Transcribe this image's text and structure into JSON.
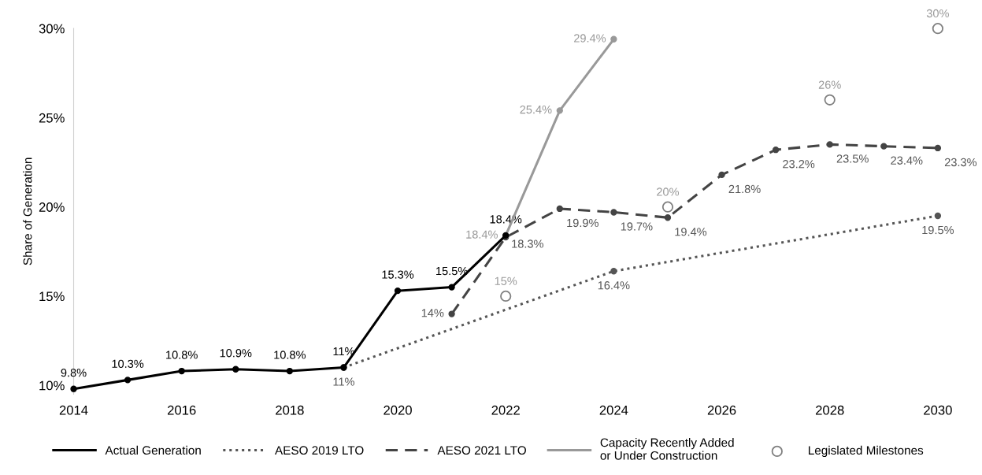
{
  "chart_data": {
    "type": "line",
    "ylabel": "Share of Generation",
    "xlim": [
      2014,
      2030
    ],
    "xticks": [
      2014,
      2016,
      2018,
      2020,
      2022,
      2024,
      2026,
      2028,
      2030
    ],
    "ylim": [
      9.5,
      30
    ],
    "yticks": [
      {
        "value": 10,
        "label": "10%"
      },
      {
        "value": 15,
        "label": "15%"
      },
      {
        "value": 20,
        "label": "20%"
      },
      {
        "value": 25,
        "label": "25%"
      },
      {
        "value": 30,
        "label": "30%"
      }
    ],
    "grid": false,
    "legend": "bottom",
    "series": [
      {
        "name": "Actual Generation",
        "type": "line",
        "color": "#000000",
        "line_style": "solid",
        "marker": "circle",
        "x": [
          2014,
          2015,
          2016,
          2017,
          2018,
          2019,
          2020,
          2021,
          2022
        ],
        "values": [
          9.8,
          10.3,
          10.8,
          10.9,
          10.8,
          11,
          15.3,
          15.5,
          18.4
        ],
        "value_labels": [
          "9.8%",
          "10.3%",
          "10.8%",
          "10.9%",
          "10.8%",
          "11%",
          "15.3%",
          "15.5%",
          "18.4%"
        ]
      },
      {
        "name": "AESO 2019 LTO",
        "type": "line",
        "color": "#555555",
        "line_style": "dotted",
        "marker": "circle",
        "x": [
          2019,
          2024,
          2030
        ],
        "values": [
          11,
          16.4,
          19.5
        ],
        "value_labels": [
          "11%",
          "16.4%",
          "19.5%"
        ]
      },
      {
        "name": "AESO 2021 LTO",
        "type": "line",
        "color": "#444444",
        "line_style": "dashed",
        "marker": "circle",
        "x": [
          2021,
          2022,
          2023,
          2024,
          2025,
          2026,
          2027,
          2028,
          2029,
          2030
        ],
        "values": [
          14,
          18.3,
          19.9,
          19.7,
          19.4,
          21.8,
          23.2,
          23.5,
          23.4,
          23.3
        ],
        "value_labels": [
          "14%",
          "18.3%",
          "19.9%",
          "19.7%",
          "19.4%",
          "21.8%",
          "23.2%",
          "23.5%",
          "23.4%",
          "23.3%"
        ]
      },
      {
        "name": "Capacity Recently Added\nor Under Construction",
        "type": "line",
        "color": "#999999",
        "line_style": "solid",
        "marker": "circle",
        "x": [
          2022,
          2023,
          2024
        ],
        "values": [
          18.4,
          25.4,
          29.4
        ],
        "value_labels": [
          "18.4%",
          "25.4%",
          "29.4%"
        ]
      },
      {
        "name": "Legislated Milestones",
        "type": "scatter",
        "color": "#808080",
        "marker": "circle",
        "x": [
          2022,
          2025,
          2028,
          2030
        ],
        "values": [
          15,
          20,
          26,
          30
        ],
        "value_labels": [
          "15%",
          "20%",
          "26%",
          "30%"
        ]
      }
    ]
  }
}
